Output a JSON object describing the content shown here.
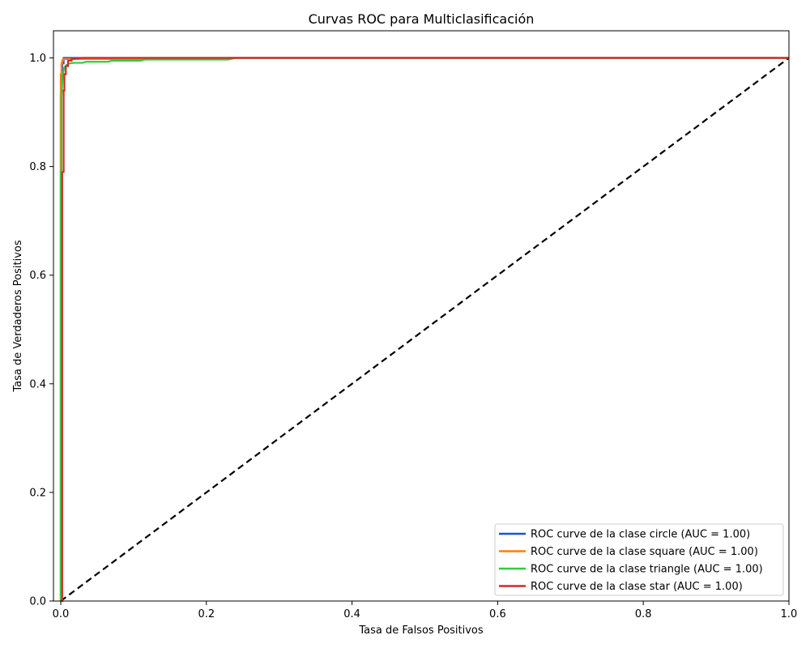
{
  "chart_data": {
    "type": "line",
    "title": "Curvas ROC para Multiclasificación",
    "xlabel": "Tasa de Falsos Positivos",
    "ylabel": "Tasa de Verdaderos Positivos",
    "xlim": [
      -0.01,
      1.0
    ],
    "ylim": [
      0.0,
      1.05
    ],
    "xticks": [
      0.0,
      0.2,
      0.4,
      0.6,
      0.8,
      1.0
    ],
    "yticks": [
      0.0,
      0.2,
      0.4,
      0.6,
      0.8,
      1.0
    ],
    "xtick_labels": [
      "0.0",
      "0.2",
      "0.4",
      "0.6",
      "0.8",
      "1.0"
    ],
    "ytick_labels": [
      "0.0",
      "0.2",
      "0.4",
      "0.6",
      "0.8",
      "1.0"
    ],
    "grid": false,
    "legend_position": "bottom-right",
    "series": [
      {
        "name": "ROC curve de la clase circle (AUC = 1.00)",
        "color": "#1f4fd8",
        "x": [
          0.0,
          0.0,
          0.001,
          0.001,
          0.002,
          0.002,
          0.004,
          0.004,
          0.01,
          1.0
        ],
        "y": [
          0.0,
          0.93,
          0.93,
          0.97,
          0.97,
          0.99,
          0.99,
          1.0,
          1.0,
          1.0
        ]
      },
      {
        "name": "ROC curve de la clase square (AUC = 1.00)",
        "color": "#ff7f0e",
        "x": [
          0.0,
          0.0,
          0.001,
          0.001,
          0.002,
          0.002,
          0.003,
          0.003,
          0.23,
          0.23,
          1.0
        ],
        "y": [
          0.0,
          0.97,
          0.97,
          0.99,
          0.99,
          0.995,
          0.995,
          0.998,
          0.998,
          1.0,
          1.0
        ]
      },
      {
        "name": "ROC curve de la clase triangle (AUC = 1.00)",
        "color": "#2ecc40",
        "x": [
          0.0,
          0.0,
          0.001,
          0.001,
          0.003,
          0.005,
          0.008,
          0.012,
          0.018,
          0.03,
          0.035,
          0.065,
          0.07,
          0.11,
          0.115,
          0.23,
          0.24,
          1.0
        ],
        "y": [
          0.0,
          0.79,
          0.79,
          0.93,
          0.97,
          0.983,
          0.987,
          0.99,
          0.991,
          0.991,
          0.993,
          0.993,
          0.995,
          0.995,
          0.997,
          0.997,
          1.0,
          1.0
        ]
      },
      {
        "name": "ROC curve de la clase star (AUC = 1.00)",
        "color": "#d62728",
        "x": [
          0.0,
          0.002,
          0.002,
          0.004,
          0.004,
          0.005,
          0.005,
          0.007,
          0.007,
          0.01,
          0.01,
          0.015,
          0.015,
          0.03,
          1.0
        ],
        "y": [
          0.0,
          0.0,
          0.79,
          0.79,
          0.94,
          0.94,
          0.97,
          0.97,
          0.985,
          0.985,
          0.995,
          0.995,
          0.998,
          1.0,
          1.0
        ]
      }
    ],
    "reference_line": {
      "x": [
        0.0,
        1.0
      ],
      "y": [
        0.0,
        1.0
      ],
      "color": "#000000",
      "style": "dashed"
    }
  }
}
